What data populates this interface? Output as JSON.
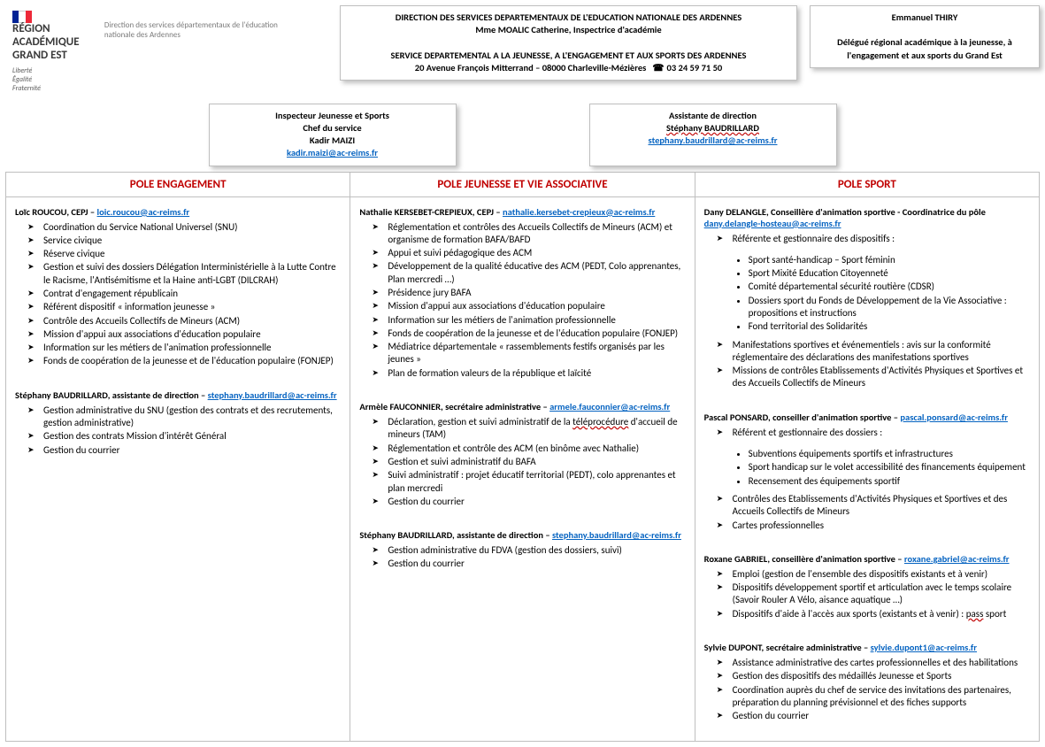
{
  "colors": {
    "title_red": "#c00000",
    "link_blue": "#0563c1",
    "border_gray": "#bfbfbf"
  },
  "logo": {
    "region_line1": "RÉGION ACADÉMIQUE",
    "region_line2": "GRAND EST",
    "motto": "Liberté\nÉgalité\nFraternité",
    "sub": "Direction des services départementaux de l'éducation nationale des Ardennes"
  },
  "center_box": {
    "line1": "DIRECTION DES SERVICES DEPARTEMENTAUX DE L'EDUCATION NATIONALE DES ARDENNES",
    "line2": "Mme MOALIC Catherine, Inspectrice d'académie",
    "line3": "SERVICE DEPARTEMENTAL A LA JEUNESSE, A L'ENGAGEMENT ET AUX SPORTS DES ARDENNES",
    "line4": "20 Avenue François Mitterrand – 08000 Charleville-Mézières",
    "phone": "03 24 59 71 50"
  },
  "right_box": {
    "name": "Emmanuel THIRY",
    "role": "Délégué régional académique à la jeunesse, à l'engagement et aux sports du Grand Est"
  },
  "sub_left": {
    "l1": "Inspecteur Jeunesse et Sports",
    "l2": "Chef du service",
    "l3": "Kadir MAIZI",
    "email": "kadir.maizi@ac-reims.fr"
  },
  "sub_right": {
    "l1": "Assistante de direction",
    "l2": "Stéphany BAUDRILLARD",
    "email": "stephany.baudrillard@ac-reims.fr"
  },
  "columns": {
    "engagement": {
      "title": "POLE ENGAGEMENT",
      "people": [
        {
          "name": "Loïc ROUCOU, CEPJ",
          "email": "loic.roucou@ac-reims.fr",
          "items": [
            "Coordination du Service National Universel (SNU)",
            "Service civique",
            "Réserve civique",
            "Gestion et suivi des dossiers Délégation Interministérielle à la Lutte Contre le Racisme, l'Antisémitisme et la Haine anti-LGBT (DILCRAH)",
            "Contrat d'engagement républicain",
            "Référent dispositif « information jeunesse »",
            "Contrôle des Accueils Collectifs de Mineurs (ACM)",
            "Mission d'appui aux associations d'éducation populaire",
            "Information sur les métiers de l'animation professionnelle",
            "Fonds de coopération de la jeunesse et de l'éducation populaire (FONJEP)"
          ]
        },
        {
          "name": "Stéphany BAUDRILLARD, assistante de direction",
          "email": "stephany.baudrillard@ac-reims.fr",
          "items": [
            "Gestion administrative du SNU (gestion des contrats et des recrutements, gestion administrative)",
            "Gestion des contrats Mission d'intérêt Général",
            "Gestion du courrier"
          ]
        }
      ]
    },
    "jeunesse": {
      "title": "POLE JEUNESSE ET VIE ASSOCIATIVE",
      "people": [
        {
          "name": "Nathalie KERSEBET-CREPIEUX, CEPJ",
          "email": "nathalie.kersebet-crepieux@ac-reims.fr",
          "items": [
            "Réglementation et contrôles des Accueils Collectifs de Mineurs (ACM) et organisme de formation BAFA/BAFD",
            "Appui et suivi pédagogique des ACM",
            "Développement de la qualité éducative des ACM (PEDT, Colo apprenantes, Plan mercredi …)",
            "Présidence jury BAFA",
            "Mission d'appui aux associations d'éducation populaire",
            "Information sur les métiers de l'animation professionnelle",
            "Fonds de coopération de la jeunesse et de l'éducation populaire (FONJEP)",
            "Médiatrice départementale « rassemblements festifs organisés par les jeunes »",
            "Plan de formation valeurs de la république et laïcité"
          ]
        },
        {
          "name": "Armèle FAUCONNIER, secrétaire administrative",
          "email": "armele.fauconnier@ac-reims.fr",
          "items_html": [
            "Déclaration, gestion et suivi administratif de la <span class=\"squiggle\">téléprocédure</span> d'accueil de mineurs (TAM)",
            "Réglementation et contrôle des ACM (en binôme avec Nathalie)",
            "Gestion et suivi administratif du BAFA",
            "Suivi administratif : projet éducatif territorial (PEDT), colo apprenantes et plan mercredi",
            "Gestion du courrier"
          ]
        },
        {
          "name": "Stéphany BAUDRILLARD, assistante de direction",
          "email": "stephany.baudrillard@ac-reims.fr",
          "items": [
            "Gestion administrative du FDVA (gestion des dossiers, suivi)",
            "Gestion du courrier"
          ]
        }
      ]
    },
    "sport": {
      "title": "POLE SPORT",
      "people": [
        {
          "name_html": "Dany DELANGLE, Conseillère d'animation sportive - Coordinatrice du pôle <a class=\"link\" data-name=\"email-link\" data-interactable=\"true\">dany.delangle-hosteau@ac-reims.fr</a>",
          "items": [
            "Référente et gestionnaire des dispositifs :"
          ],
          "sub_bullets": [
            "Sport santé-handicap – Sport féminin",
            "Sport Mixité Education Citoyenneté",
            "Comité départemental sécurité routière (CDSR)",
            "Dossiers sport du Fonds de Développement de la Vie Associative : propositions et instructions",
            "Fond territorial des Solidarités"
          ],
          "items2": [
            "Manifestations sportives et événementiels : avis sur la conformité réglementaire des déclarations des manifestations sportives",
            "Missions de contrôles Etablissements d'Activités Physiques et Sportives et des Accueils Collectifs de Mineurs"
          ]
        },
        {
          "name": "Pascal PONSARD, conseiller d'animation sportive",
          "email": "pascal.ponsard@ac-reims.fr",
          "items": [
            "Référent et gestionnaire des dossiers :"
          ],
          "sub_bullets": [
            "Subventions équipements sportifs et infrastructures",
            "Sport handicap sur le volet accessibilité des financements équipement",
            "Recensement des équipements sportif"
          ],
          "items2": [
            "Contrôles des Etablissements d'Activités Physiques et Sportives et des Accueils Collectifs de Mineurs",
            "Cartes professionnelles"
          ]
        },
        {
          "name": "Roxane GABRIEL, conseillère d'animation sportive",
          "email": "roxane.gabriel@ac-reims.fr",
          "items_html": [
            "Emploi (gestion de l'ensemble des dispositifs existants et à venir)",
            "Dispositifs développement sportif et articulation avec le temps scolaire (Savoir Rouler A Vélo, aisance aquatique …)",
            "Dispositifs d'aide à l'accès aux sports (existants et à venir) : <span class=\"squiggle\">pass</span> sport"
          ]
        },
        {
          "name": "Sylvie DUPONT, secrétaire administrative",
          "email": "sylvie.dupont1@ac-reims.fr",
          "items": [
            "Assistance administrative des cartes professionnelles et des habilitations",
            "Gestion des dispositifs des médaillés Jeunesse et Sports",
            "Coordination auprès du chef de service des invitations des partenaires, préparation du planning prévisionnel et des fiches supports",
            "Gestion du courrier"
          ]
        }
      ]
    }
  }
}
